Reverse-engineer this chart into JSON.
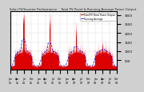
{
  "title": "Solar PV/Inverter Performance    Total PV Panel & Running Average Power Output",
  "bg_color": "#d0d0d0",
  "plot_bg": "#ffffff",
  "grid_color": "#aaaaaa",
  "bar_color": "#dd0000",
  "avg_line_color": "#0000dd",
  "ylim": [
    0,
    3200
  ],
  "yticks": [
    500,
    1000,
    1500,
    2000,
    2500,
    3000
  ],
  "ytick_labels": [
    "500",
    "1000",
    "1500",
    "2000",
    "2500",
    "3000"
  ],
  "num_points": 1460,
  "x_tick_labels": [
    "Jan\n05",
    "Apr\n05",
    "Jul\n05",
    "Oct\n05",
    "Jan\n06",
    "Apr\n06",
    "Jul\n06",
    "Oct\n06",
    "Jan\n07",
    "Apr\n07",
    "Jul\n07",
    "Oct\n07",
    "Jan\n08",
    "Apr\n08",
    "Jul\n08",
    "Oct\n08"
  ],
  "legend_label_pv": "Total PV Panel Power Output",
  "legend_label_avg": "Running Average",
  "legend_color_pv": "#dd0000",
  "legend_color_avg": "#0000dd"
}
